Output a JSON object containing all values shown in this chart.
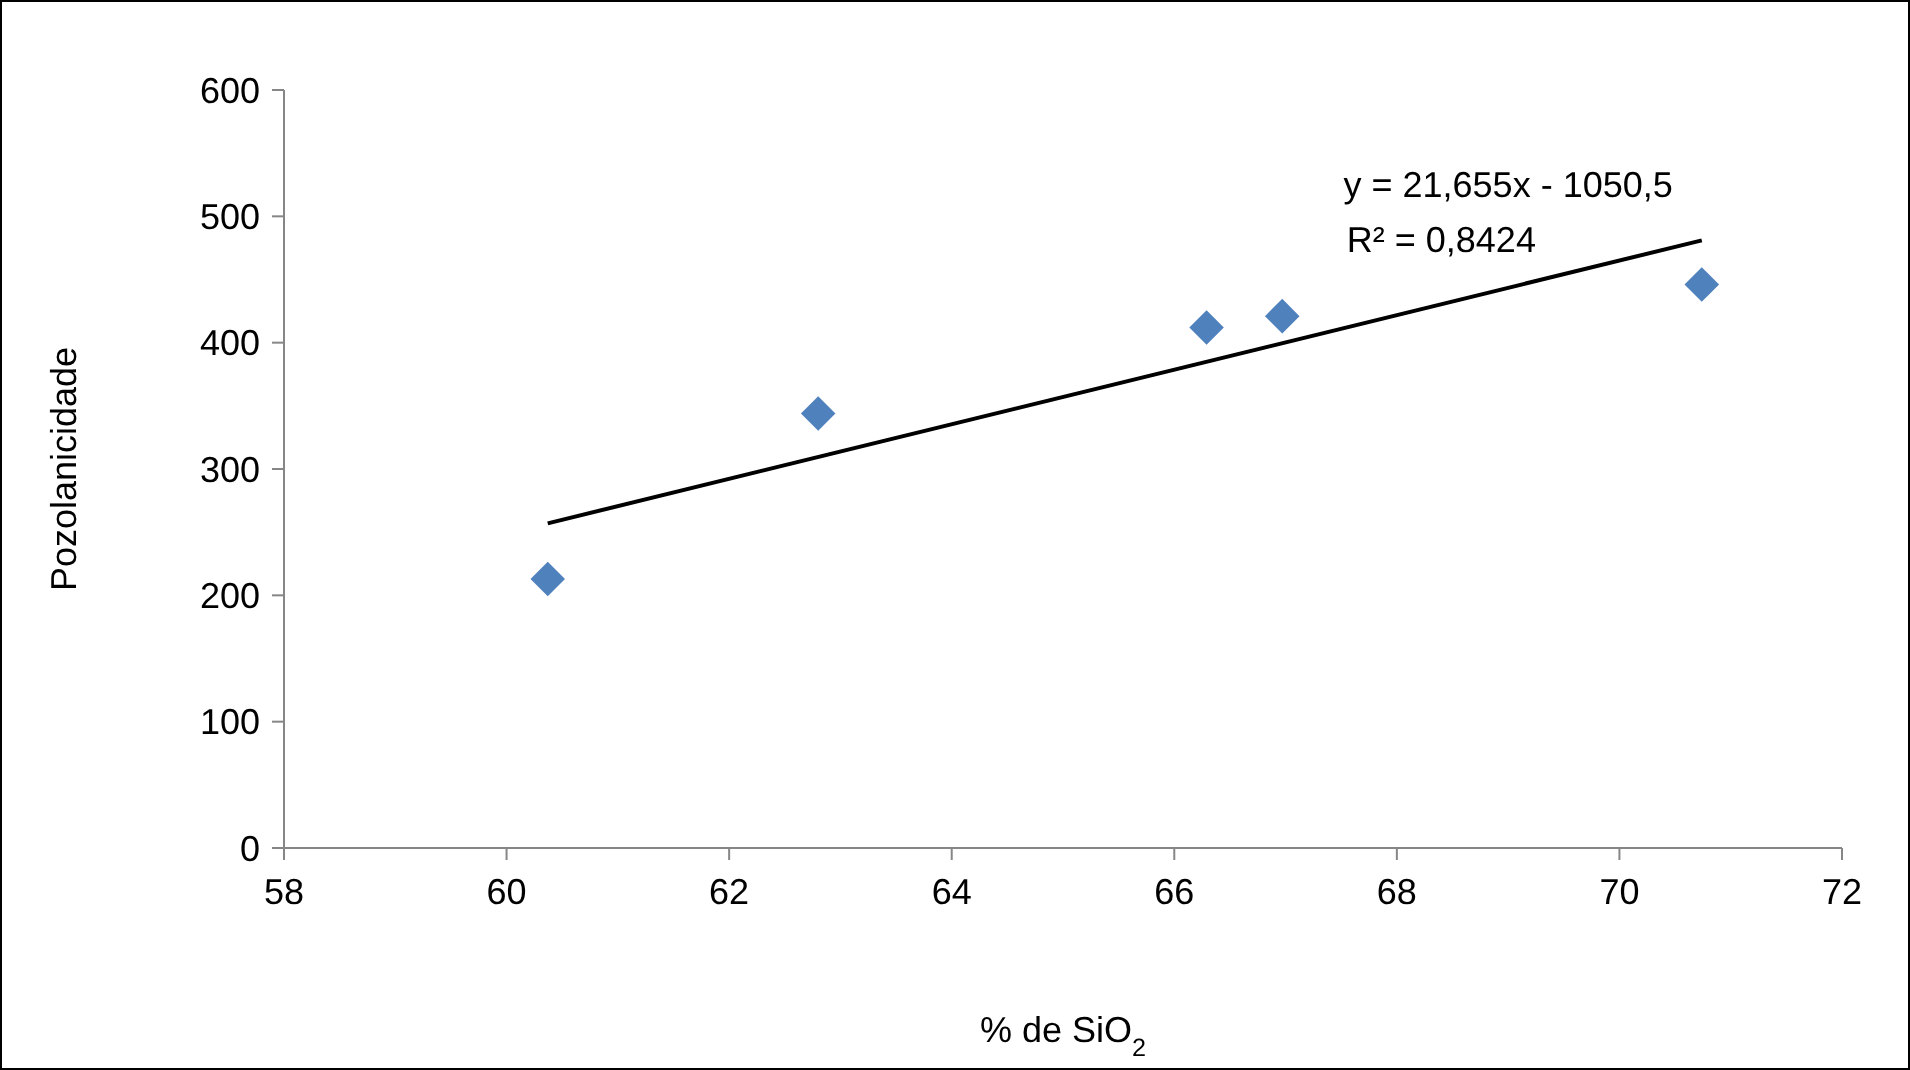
{
  "chart_data": {
    "type": "scatter",
    "xlabel": "% de SiO$_{2}$",
    "ylabel": "Pozolanicidade",
    "xlim": [
      58,
      72
    ],
    "xticks": [
      58,
      60,
      62,
      64,
      66,
      68,
      70,
      72
    ],
    "ylim": [
      0,
      600
    ],
    "yticks": [
      0,
      100,
      200,
      300,
      400,
      500,
      600
    ],
    "grid": false,
    "marker": "diamond",
    "series": [
      {
        "color": "#4f81bd",
        "x": [
          60.37,
          62.8,
          66.29,
          66.97,
          70.74
        ],
        "values": [
          213,
          344,
          412,
          421,
          446
        ]
      },
      {
        "type": "line",
        "color": "#000000",
        "marker": "none",
        "x": [
          60.37,
          70.74
        ],
        "values": [
          257,
          481
        ]
      }
    ],
    "annotations": [
      "y = 21,655x - 1050,5",
      "R² = 0,8424"
    ]
  }
}
